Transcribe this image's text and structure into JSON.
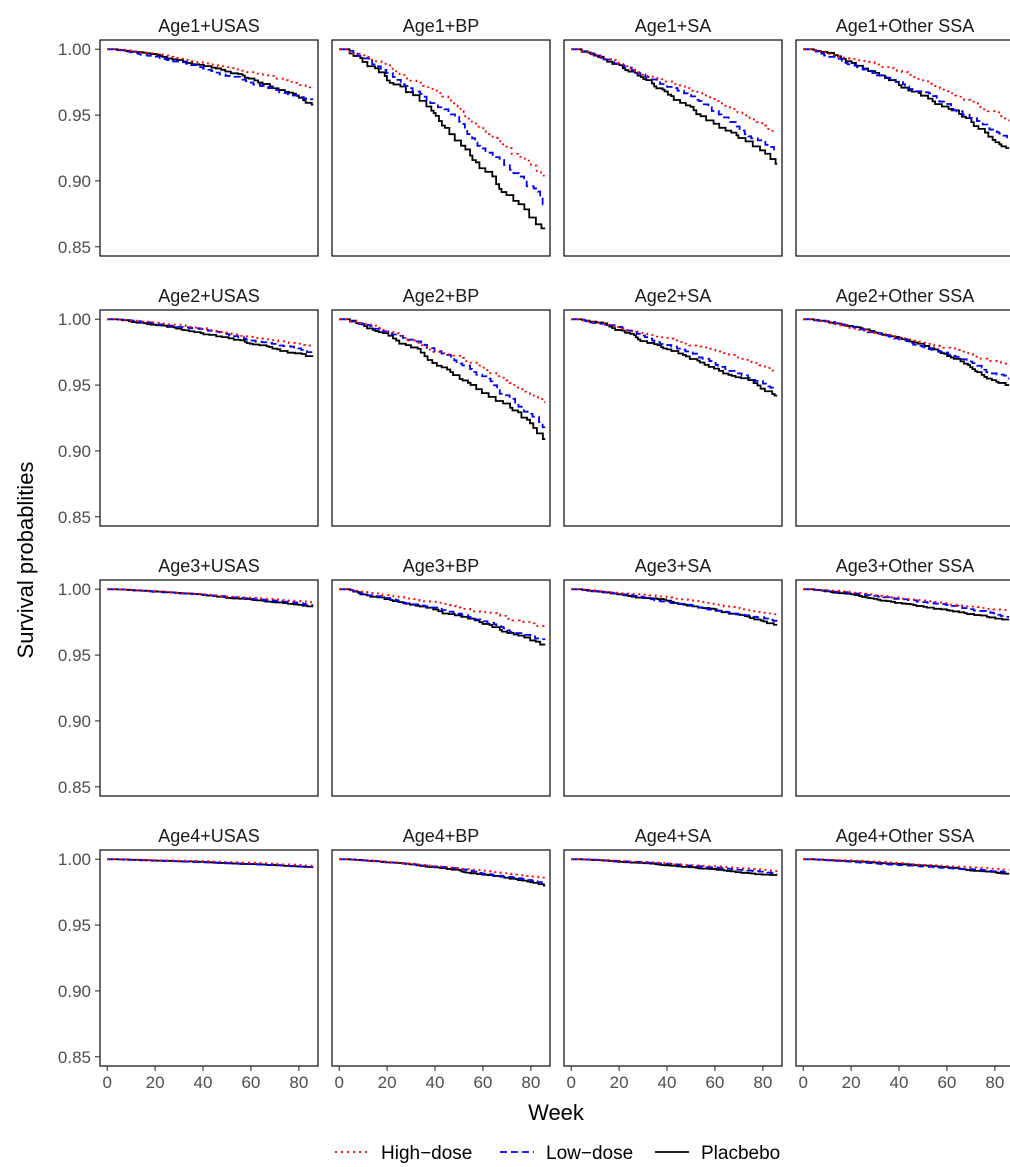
{
  "chart_data": {
    "type": "line",
    "xlabel": "Week",
    "ylabel": "Survival probablities",
    "xlim": [
      -3,
      88
    ],
    "ylim": [
      0.843,
      1.007
    ],
    "xticks": [
      0,
      20,
      40,
      60,
      80
    ],
    "yticks": [
      0.85,
      0.9,
      0.95,
      1.0
    ],
    "ytick_labels": [
      "0.85",
      "0.90",
      "0.95",
      "1.00"
    ],
    "facet_layout": {
      "rows": 4,
      "cols": 4
    },
    "grid": false,
    "legend": {
      "position": "bottom",
      "entries": [
        {
          "name": "High−dose",
          "color": "#ff0000",
          "linetype": "dotted"
        },
        {
          "name": "Low−dose",
          "color": "#0000ff",
          "linetype": "dashed"
        },
        {
          "name": "Placbebo",
          "color": "#000000",
          "linetype": "solid"
        }
      ]
    },
    "panels": [
      {
        "title": "Age1+USAS",
        "final": {
          "high": 0.97,
          "low": 0.962,
          "placebo": 0.958
        }
      },
      {
        "title": "Age1+BP",
        "final": {
          "high": 0.904,
          "low": 0.882,
          "placebo": 0.864
        }
      },
      {
        "title": "Age1+SA",
        "final": {
          "high": 0.938,
          "low": 0.923,
          "placebo": 0.913
        }
      },
      {
        "title": "Age1+Other SSA",
        "final": {
          "high": 0.946,
          "low": 0.932,
          "placebo": 0.925
        }
      },
      {
        "title": "Age2+USAS",
        "final": {
          "high": 0.98,
          "low": 0.975,
          "placebo": 0.972
        }
      },
      {
        "title": "Age2+BP",
        "final": {
          "high": 0.937,
          "low": 0.918,
          "placebo": 0.909
        }
      },
      {
        "title": "Age2+SA",
        "final": {
          "high": 0.961,
          "low": 0.948,
          "placebo": 0.942
        }
      },
      {
        "title": "Age2+Other SSA",
        "final": {
          "high": 0.965,
          "low": 0.955,
          "placebo": 0.95
        }
      },
      {
        "title": "Age3+USAS",
        "final": {
          "high": 0.99,
          "low": 0.988,
          "placebo": 0.987
        }
      },
      {
        "title": "Age3+BP",
        "final": {
          "high": 0.971,
          "low": 0.962,
          "placebo": 0.958
        }
      },
      {
        "title": "Age3+SA",
        "final": {
          "high": 0.981,
          "low": 0.976,
          "placebo": 0.973
        }
      },
      {
        "title": "Age3+Other SSA",
        "final": {
          "high": 0.984,
          "low": 0.979,
          "placebo": 0.977
        }
      },
      {
        "title": "Age4+USAS",
        "final": {
          "high": 0.995,
          "low": 0.994,
          "placebo": 0.994
        }
      },
      {
        "title": "Age4+BP",
        "final": {
          "high": 0.986,
          "low": 0.982,
          "placebo": 0.98
        }
      },
      {
        "title": "Age4+SA",
        "final": {
          "high": 0.991,
          "low": 0.989,
          "placebo": 0.988
        }
      },
      {
        "title": "Age4+Other SSA",
        "final": {
          "high": 0.992,
          "low": 0.99,
          "placebo": 0.989
        }
      }
    ]
  }
}
